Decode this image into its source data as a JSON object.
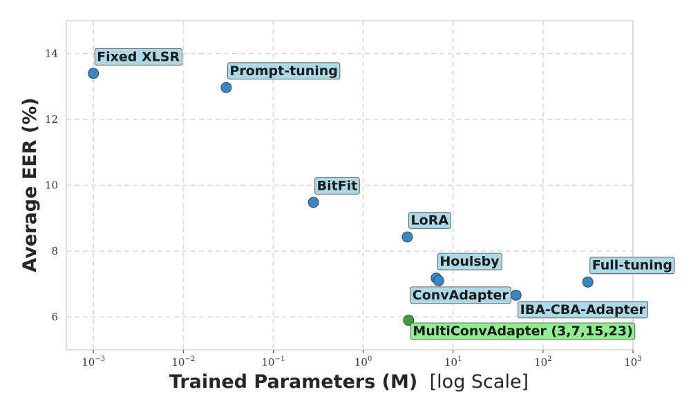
{
  "chart_data": {
    "type": "scatter",
    "xscale": "log",
    "xlim": [
      0.0005,
      1000
    ],
    "ylim": [
      5,
      15
    ],
    "xlabel": "Trained Parameters (M)",
    "xlabel_suffix": "[log Scale]",
    "ylabel": "Average EER (%)",
    "grid": true,
    "x_ticks": [
      {
        "base": "10",
        "exp": "−3",
        "value": 0.001
      },
      {
        "base": "10",
        "exp": "−2",
        "value": 0.01
      },
      {
        "base": "10",
        "exp": "−1",
        "value": 0.1
      },
      {
        "base": "10",
        "exp": "0",
        "value": 1
      },
      {
        "base": "10",
        "exp": "1",
        "value": 10
      },
      {
        "base": "10",
        "exp": "2",
        "value": 100
      },
      {
        "base": "10",
        "exp": "3",
        "value": 1000
      }
    ],
    "y_ticks": [
      6,
      8,
      10,
      12,
      14
    ],
    "colors": {
      "point": "#3a86c2",
      "point_highlight": "#3c9f3c",
      "label_bg": "#add8e6",
      "label_bg_highlight": "#90ee90",
      "label_border": "#555555"
    },
    "points": [
      {
        "name": "Fixed XLSR",
        "x": 0.001,
        "y": 13.4
      },
      {
        "name": "Prompt-tuning",
        "x": 0.03,
        "y": 12.97
      },
      {
        "name": "BitFit",
        "x": 0.28,
        "y": 9.48
      },
      {
        "name": "LoRA",
        "x": 3.1,
        "y": 8.43
      },
      {
        "name": "Houlsby",
        "x": 6.5,
        "y": 7.18
      },
      {
        "name": "ConvAdapter",
        "x": 6.9,
        "y": 7.1
      },
      {
        "name": "IBA-CBA-Adapter",
        "x": 50,
        "y": 6.66
      },
      {
        "name": "Full-tuning",
        "x": 315,
        "y": 7.06
      },
      {
        "name": "MultiConvAdapter (3,7,15,23)",
        "x": 3.2,
        "y": 5.9,
        "highlight": true
      }
    ]
  }
}
